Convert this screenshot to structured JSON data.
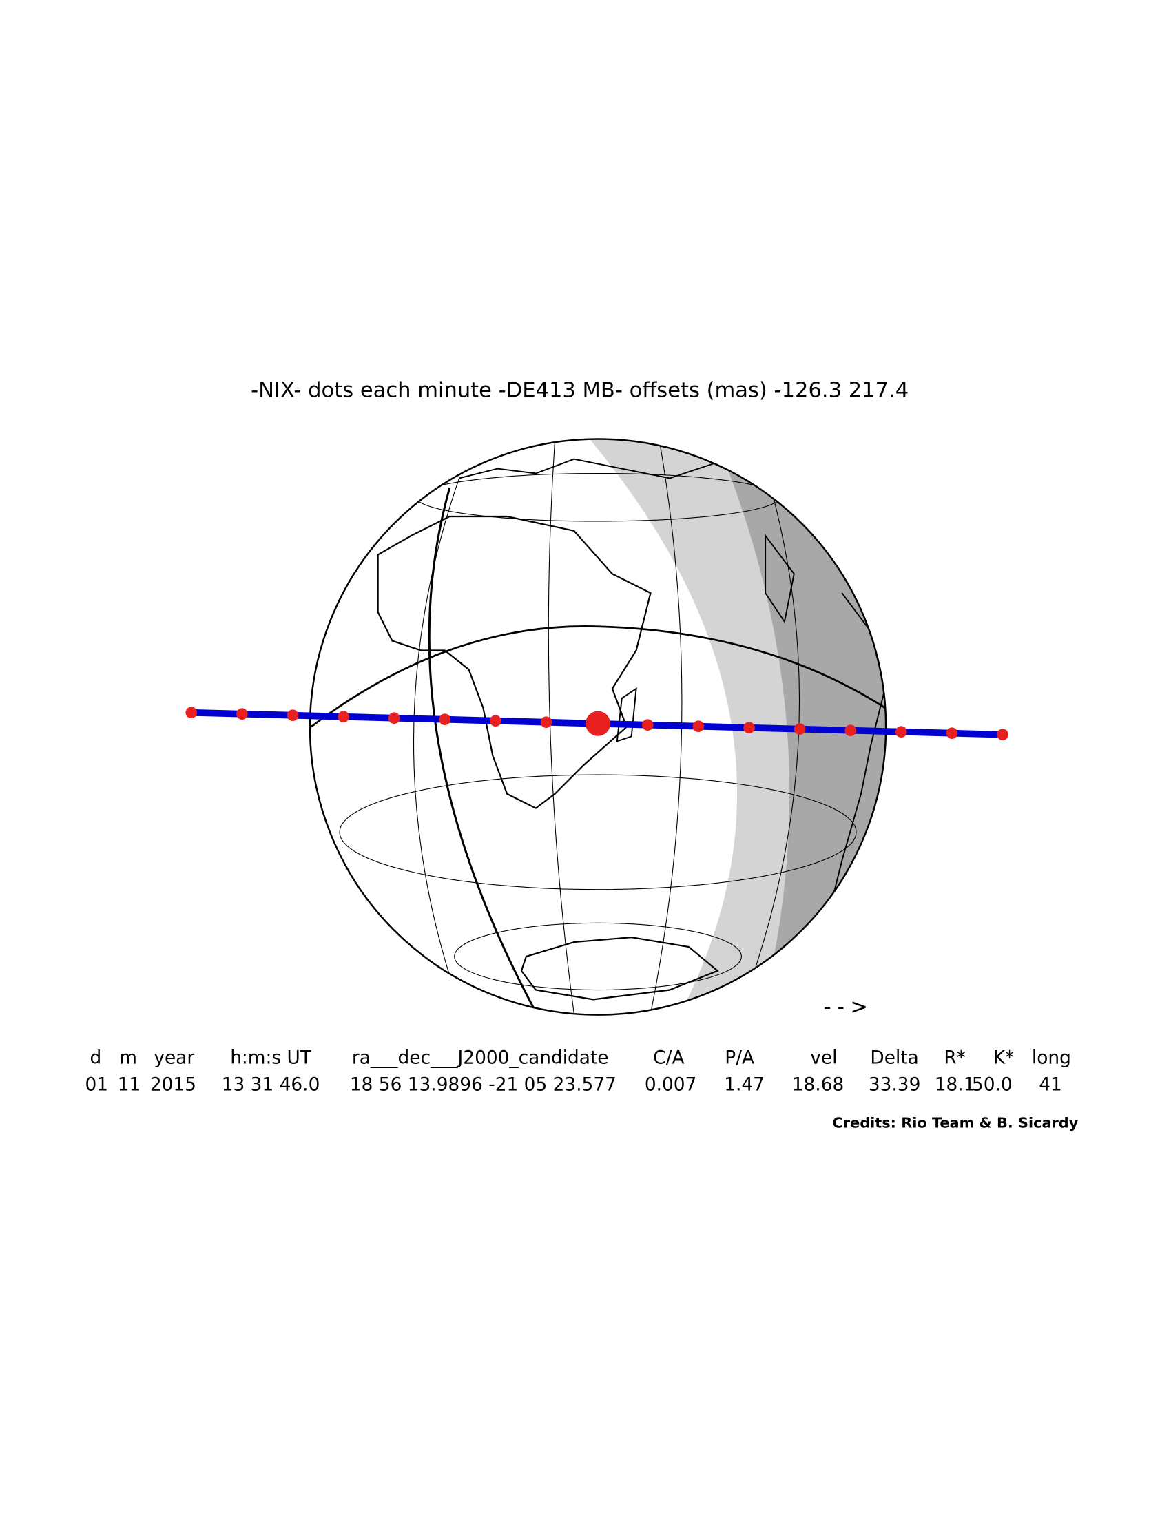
{
  "title": "-NIX- dots each minute -DE413 MB- offsets (mas) -126.3  217.4",
  "table": {
    "headers": [
      "d",
      "m",
      "year",
      "h:m:s UT",
      "ra___dec___J2000_candidate",
      "C/A",
      "P/A",
      "vel",
      "Delta",
      "R*",
      "K*",
      "long"
    ],
    "rows": [
      [
        "01",
        "11",
        "2015",
        "13 31 46.0",
        "18 56 13.9896 -21 05 23.577",
        "0.007",
        "1.47",
        "18.68",
        "33.39",
        "18.1",
        "50.0",
        "41"
      ]
    ]
  },
  "credits": "Credits: Rio Team & B. Sicardy",
  "arrow": "-->"
}
